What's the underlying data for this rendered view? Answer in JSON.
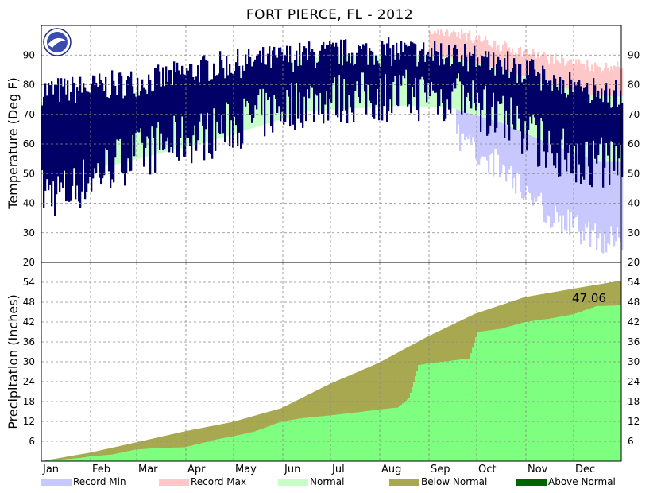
{
  "chart_data": [
    {
      "type": "area",
      "panel": "temperature",
      "title": "FORT PIERCE, FL - 2012",
      "ylabel": "Temperature (Deg F)",
      "xlabel": "",
      "ylim": [
        20,
        100
      ],
      "yticks": [
        30,
        40,
        50,
        60,
        70,
        80,
        90
      ],
      "months": [
        "Jan",
        "Feb",
        "Mar",
        "Apr",
        "May",
        "Jun",
        "Jul",
        "Aug",
        "Sep",
        "Oct",
        "Nov",
        "Dec"
      ],
      "grid": true,
      "monthly_profile": {
        "normal_high": [
          74,
          76,
          79,
          82,
          86,
          89,
          90,
          90,
          89,
          85,
          80,
          76
        ],
        "normal_low": [
          51,
          53,
          57,
          61,
          66,
          71,
          72,
          73,
          72,
          67,
          60,
          54
        ],
        "record_high": [
          null,
          null,
          null,
          null,
          null,
          null,
          null,
          null,
          98,
          93,
          89,
          86
        ],
        "record_low": [
          null,
          null,
          null,
          null,
          null,
          null,
          null,
          null,
          63,
          52,
          36,
          28
        ],
        "observed_high": [
          78,
          80,
          82,
          86,
          88,
          90,
          91,
          91,
          90,
          87,
          82,
          77
        ],
        "observed_low": [
          40,
          50,
          56,
          60,
          66,
          71,
          72,
          73,
          72,
          65,
          55,
          50
        ]
      }
    },
    {
      "type": "area",
      "panel": "precipitation",
      "ylabel": "Precipitation (Inches)",
      "xlabel": "",
      "ylim": [
        0,
        60
      ],
      "yticks": [
        6,
        12,
        18,
        24,
        30,
        36,
        42,
        48,
        54
      ],
      "months": [
        "Jan",
        "Feb",
        "Mar",
        "Apr",
        "May",
        "Jun",
        "Jul",
        "Aug",
        "Sep",
        "Oct",
        "Nov",
        "Dec"
      ],
      "grid": true,
      "normal_cumulative": {
        "day": [
          1,
          32,
          60,
          91,
          121,
          152,
          182,
          213,
          244,
          274,
          305,
          335,
          366
        ],
        "value": [
          0,
          2.6,
          5.6,
          9.0,
          11.8,
          16.0,
          23.2,
          29.6,
          37.6,
          44.5,
          49.5,
          52.0,
          54.5
        ]
      },
      "observed_cumulative": {
        "day": [
          1,
          25,
          32,
          45,
          60,
          75,
          91,
          110,
          121,
          135,
          152,
          165,
          182,
          200,
          213,
          225,
          232,
          238,
          244,
          270,
          275,
          290,
          305,
          320,
          335,
          350,
          366
        ],
        "value": [
          0,
          1.0,
          1.5,
          2.0,
          3.5,
          4.0,
          4.2,
          6.5,
          7.5,
          9.0,
          12.0,
          13.0,
          13.8,
          14.8,
          15.6,
          16.2,
          19.0,
          29.0,
          29.5,
          31.0,
          39.0,
          40.0,
          42.0,
          43.0,
          44.3,
          46.8,
          47.06
        ]
      },
      "annotation": "47.06"
    }
  ],
  "legend": [
    {
      "label": "Record Min",
      "color": "#c8c8ff"
    },
    {
      "label": "Record Max",
      "color": "#ffc8c8"
    },
    {
      "label": "Normal",
      "color": "#c8ffc8"
    },
    {
      "label": "Below Normal",
      "color": "#a8a850"
    },
    {
      "label": "Above Normal",
      "color": "#006400"
    }
  ],
  "colors": {
    "observed": "#000066",
    "precip_observed": "#7fff7f",
    "precip_normal": "#a8a850"
  }
}
